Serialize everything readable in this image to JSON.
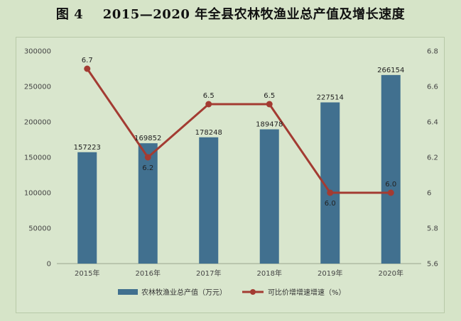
{
  "figure": {
    "number": "图 4",
    "title": "2015—2020 年全县农林牧渔业总产值及增长速度"
  },
  "chart_data": {
    "type": "bar",
    "categories": [
      "2015年",
      "2016年",
      "2017年",
      "2018年",
      "2019年",
      "2020年"
    ],
    "series": [
      {
        "name": "农林牧渔业总产值（万元）",
        "type": "bar",
        "axis": "left",
        "values": [
          157223,
          169852,
          178248,
          189478,
          227514,
          266154
        ],
        "labels": [
          "157223",
          "169852",
          "178248",
          "189478",
          "227514",
          "266154"
        ],
        "color": "#41708f"
      },
      {
        "name": "可比价增增速增速（%）",
        "type": "line",
        "axis": "right",
        "values": [
          6.7,
          6.2,
          6.5,
          6.5,
          6.0,
          6.0
        ],
        "labels": [
          "6.7",
          "6.2",
          "6.5",
          "6.5",
          "6.0",
          "6.0"
        ],
        "color": "#a33b32"
      }
    ],
    "y_left": {
      "ylim": [
        0,
        300000
      ],
      "ticks": [
        0,
        50000,
        100000,
        150000,
        200000,
        250000,
        300000
      ],
      "tick_labels": [
        "0",
        "50000",
        "100000",
        "150000",
        "200000",
        "250000",
        "300000"
      ]
    },
    "y_right": {
      "ylim": [
        5.6,
        6.8
      ],
      "ticks": [
        5.6,
        5.8,
        6.0,
        6.2,
        6.4,
        6.6,
        6.8
      ],
      "tick_labels": [
        "5.6",
        "5.8",
        "6",
        "6.2",
        "6.4",
        "6.6",
        "6.8"
      ]
    },
    "grid": false,
    "legend": "bottom"
  }
}
